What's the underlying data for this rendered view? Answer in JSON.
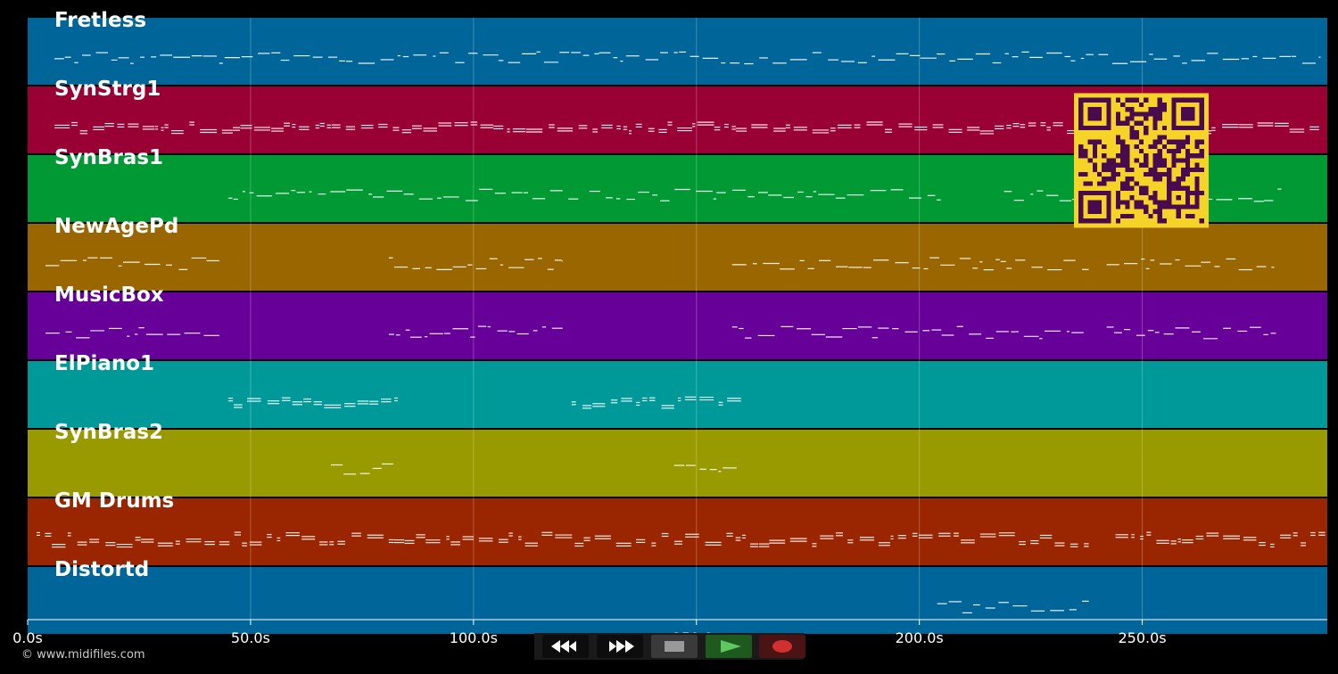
{
  "copyright": "© www.midifiles.com",
  "axis": {
    "ticks": [
      "0.0s",
      "50.0s",
      "100.0s",
      "150.0s",
      "200.0s",
      "250.0s"
    ],
    "tick_seconds": [
      0,
      50,
      100,
      150,
      200,
      250
    ],
    "max_seconds": 291.5
  },
  "tracks": [
    {
      "name": "Fretless",
      "color": "#006699"
    },
    {
      "name": "SynStrg1",
      "color": "#990033"
    },
    {
      "name": "SynBras1",
      "color": "#009933"
    },
    {
      "name": "NewAgePd",
      "color": "#996600"
    },
    {
      "name": "MusicBox",
      "color": "#660099"
    },
    {
      "name": "ElPiano1",
      "color": "#009999"
    },
    {
      "name": "SynBras2",
      "color": "#999900"
    },
    {
      "name": "GM Drums",
      "color": "#992600"
    },
    {
      "name": "Distortd",
      "color": "#006699"
    }
  ],
  "transport": {
    "rewind": "rewind-icon",
    "fast_forward": "fast-forward-icon",
    "stop": "stop-icon",
    "play": "play-icon",
    "record": "record-icon"
  },
  "qr_code": "qr-code"
}
